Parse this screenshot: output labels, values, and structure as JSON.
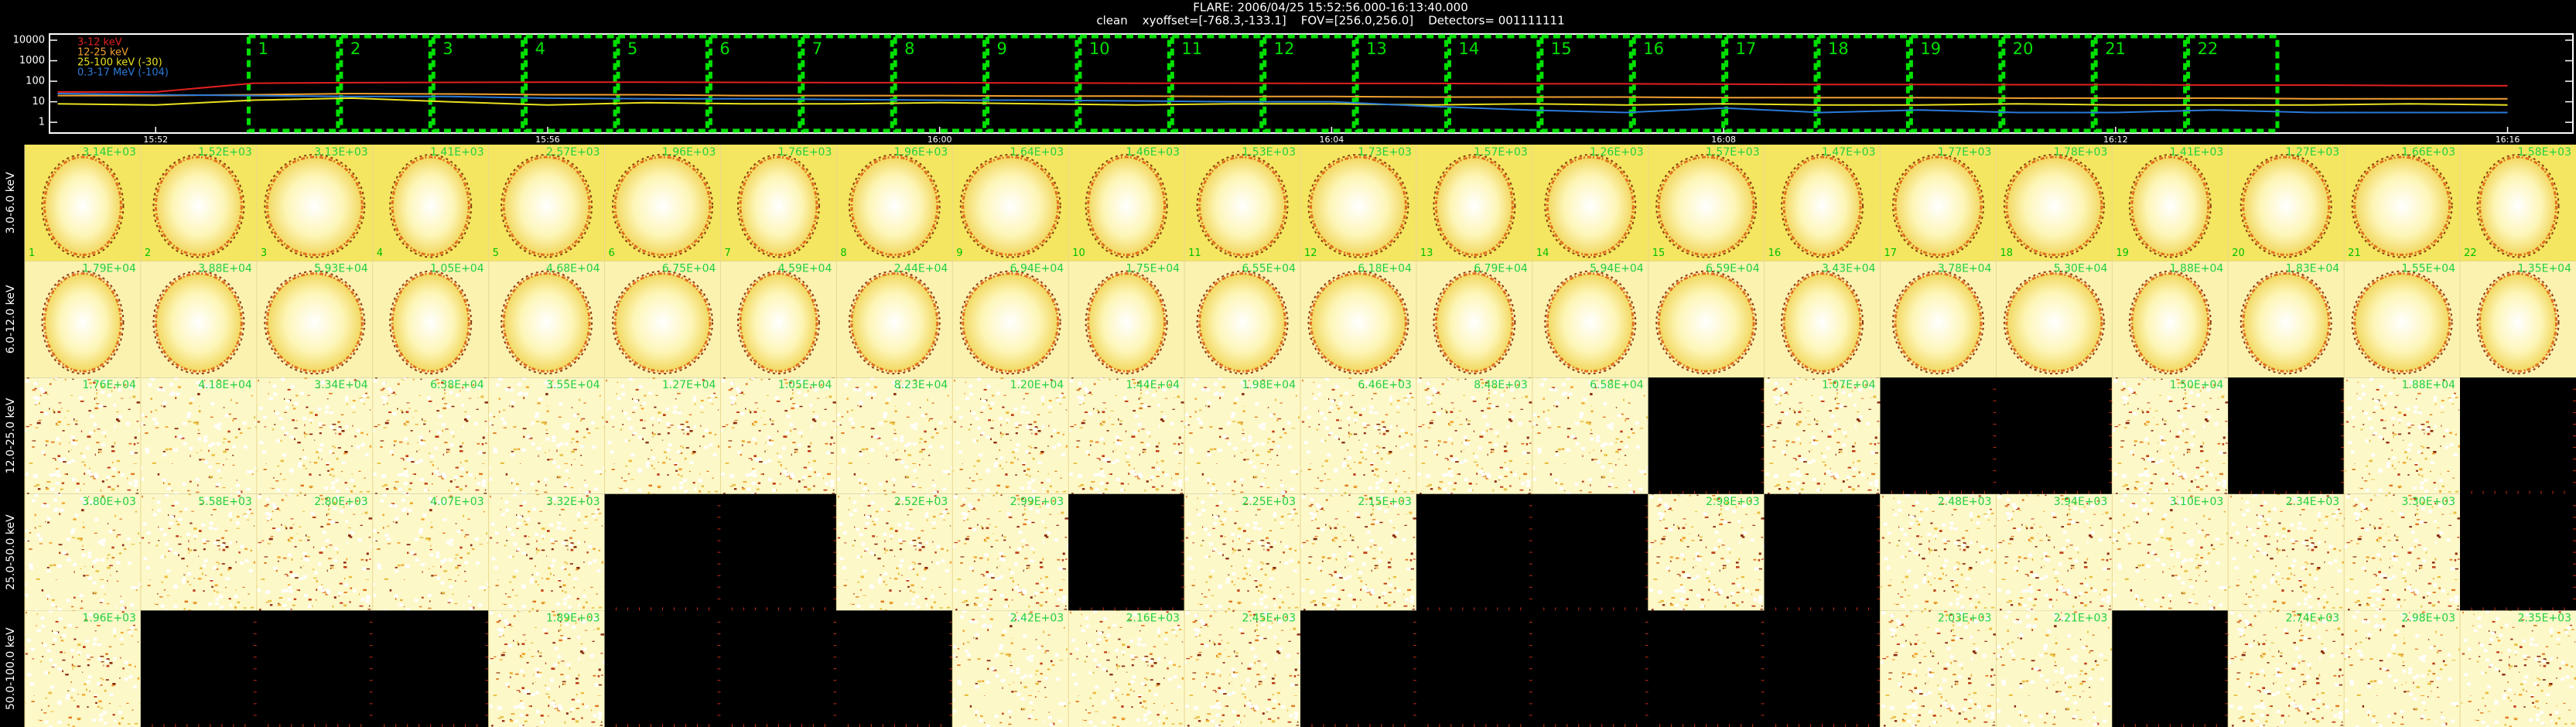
{
  "header": {
    "title": "FLARE: 2006/04/25 15:52:56.000-16:13:40.000",
    "subtitle": "clean    xyoffset=[-768.3,-133.1]    FOV=[256.0,256.0]    Detectors= 001111111"
  },
  "lightcurve": {
    "x": [
      "15:51",
      "15:52",
      "15:53",
      "15:54",
      "15:55",
      "15:56",
      "15:57",
      "15:58",
      "15:59",
      "16:00",
      "16:01",
      "16:02",
      "16:03",
      "16:04",
      "16:05",
      "16:06",
      "16:07",
      "16:08",
      "16:09",
      "16:10",
      "16:11",
      "16:12",
      "16:13",
      "16:14",
      "16:15",
      "16:16"
    ],
    "xlim": [
      "15:50:55",
      "16:16:40"
    ],
    "xticks": [
      "15:52",
      "15:56",
      "16:00",
      "16:04",
      "16:08",
      "16:12",
      "16:16"
    ],
    "ylim": [
      0.3,
      20000
    ],
    "yticks": [
      1,
      10,
      100,
      1000,
      10000
    ],
    "log": true,
    "series": [
      {
        "name": "3-12 keV",
        "color": "#e02020",
        "values": [
          30,
          30,
          80,
          85,
          88,
          90,
          90,
          88,
          85,
          85,
          82,
          80,
          80,
          78,
          78,
          75,
          75,
          72,
          70,
          70,
          68,
          68,
          65,
          65,
          62,
          60
        ]
      },
      {
        "name": "12-25 keV",
        "color": "#f0a030",
        "values": [
          20,
          20,
          22,
          25,
          24,
          22,
          22,
          20,
          20,
          20,
          19,
          19,
          18,
          18,
          17,
          17,
          17,
          16,
          16,
          16,
          15,
          15,
          15,
          14,
          14,
          14
        ]
      },
      {
        "name": "25-100 keV (-30)",
        "color": "#e8e020",
        "values": [
          8,
          7,
          12,
          15,
          10,
          7,
          9,
          8,
          8,
          9,
          8,
          7,
          8,
          8,
          7,
          8,
          7,
          8,
          7,
          7,
          8,
          7,
          7,
          7,
          8,
          7
        ]
      },
      {
        "name": "0.3-17 MeV (-104)",
        "color": "#2a7ad8",
        "values": [
          25,
          22,
          20,
          18,
          18,
          15,
          14,
          14,
          13,
          12,
          12,
          11,
          10,
          10,
          6,
          4,
          3,
          5,
          3,
          4,
          3,
          3,
          4,
          3,
          3,
          3
        ]
      }
    ],
    "intervals": {
      "labels": [
        "1",
        "2",
        "3",
        "4",
        "5",
        "6",
        "7",
        "8",
        "9",
        "10",
        "11",
        "12",
        "13",
        "14",
        "15",
        "16",
        "17",
        "18",
        "19",
        "20",
        "21",
        "22"
      ],
      "start": "15:52:56",
      "end": "16:13:40"
    }
  },
  "grid": {
    "rows": [
      {
        "label": "3.0-6.0 keV",
        "kind": "blob",
        "cells": [
          "3.14E+03",
          "1.52E+03",
          "3.13E+03",
          "1.41E+03",
          "2.57E+03",
          "1.96E+03",
          "1.76E+03",
          "1.96E+03",
          "1.64E+03",
          "1.46E+03",
          "1.53E+03",
          "1.73E+03",
          "1.57E+03",
          "1.26E+03",
          "1.57E+03",
          "1.47E+03",
          "1.77E+03",
          "1.78E+03",
          "1.41E+03",
          "1.27E+03",
          "1.66E+03",
          "1.58E+03"
        ]
      },
      {
        "label": "6.0-12.0 keV",
        "kind": "blob",
        "cells": [
          "1.79E+04",
          "3.88E+04",
          "5.93E+04",
          "1.05E+04",
          "4.68E+04",
          "6.75E+04",
          "4.59E+04",
          "2.44E+04",
          "6.94E+04",
          "1.75E+04",
          "6.55E+04",
          "6.18E+04",
          "6.79E+04",
          "5.94E+04",
          "6.59E+04",
          "3.43E+04",
          "3.78E+04",
          "5.30E+04",
          "1.88E+04",
          "1.83E+04",
          "1.55E+04",
          "1.35E+04"
        ]
      },
      {
        "label": "12.0-25.0 keV",
        "kind": "noise",
        "cells": [
          "1.76E+04",
          "4.18E+04",
          "3.34E+04",
          "6.38E+04",
          "3.55E+04",
          "1.27E+04",
          "1.05E+04",
          "8.23E+04",
          "1.20E+04",
          "1.44E+04",
          "1.98E+04",
          "6.46E+03",
          "8.48E+03",
          "6.58E+04",
          null,
          "1.07E+04",
          null,
          null,
          "1.50E+04",
          null,
          "1.88E+04",
          null
        ]
      },
      {
        "label": "25.0-50.0 keV",
        "kind": "noise",
        "cells": [
          "3.80E+03",
          "5.58E+03",
          "2.80E+03",
          "4.07E+03",
          "3.32E+03",
          null,
          null,
          "2.52E+03",
          "2.99E+03",
          null,
          "2.25E+03",
          "2.15E+03",
          null,
          null,
          "2.98E+03",
          null,
          "2.48E+03",
          "3.94E+03",
          "3.10E+03",
          "2.34E+03",
          "3.30E+03",
          null
        ]
      },
      {
        "label": "50.0-100.0 keV",
        "kind": "noise",
        "cells": [
          "1.96E+03",
          null,
          null,
          null,
          "1.89E+03",
          null,
          null,
          null,
          "2.42E+03",
          "2.16E+03",
          "2.45E+03",
          null,
          null,
          null,
          null,
          null,
          "2.03E+03",
          "2.21E+03",
          null,
          "2.74E+03",
          "2.98E+03",
          "2.35E+03"
        ]
      }
    ]
  }
}
